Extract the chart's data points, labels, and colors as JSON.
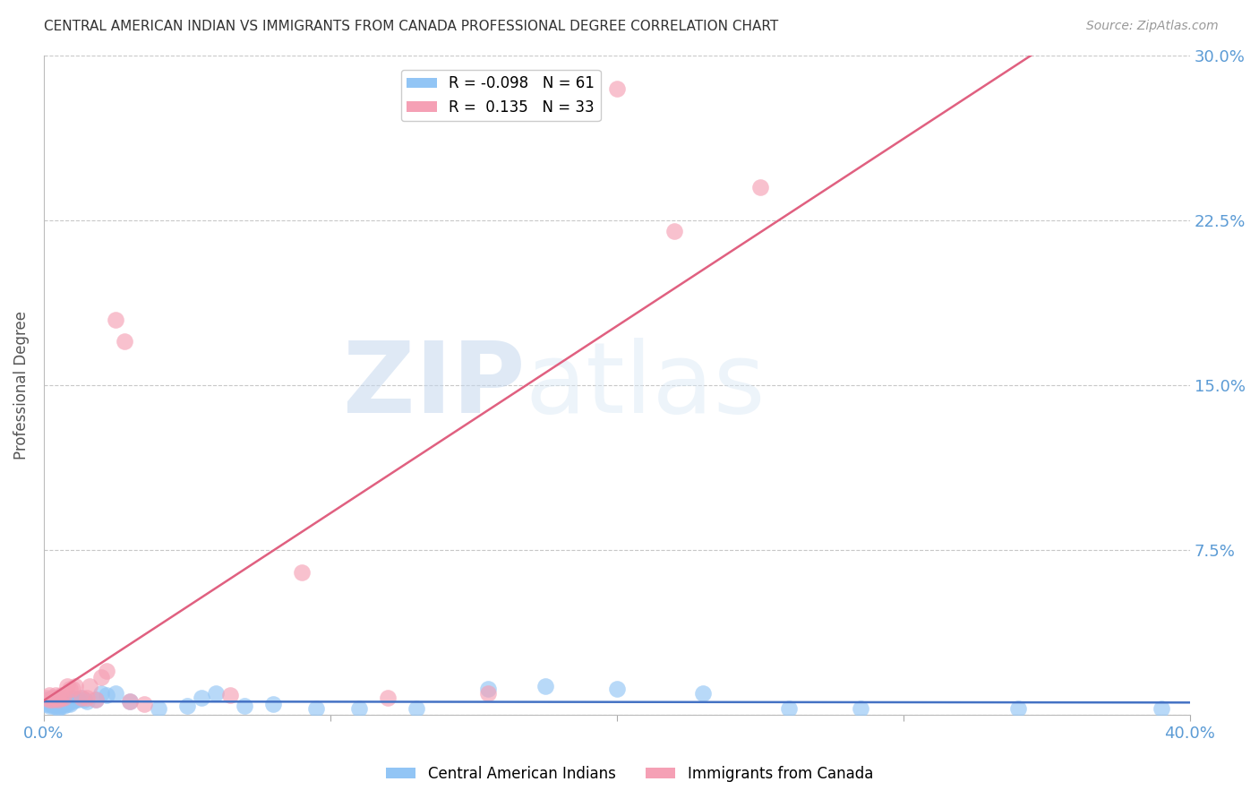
{
  "title": "CENTRAL AMERICAN INDIAN VS IMMIGRANTS FROM CANADA PROFESSIONAL DEGREE CORRELATION CHART",
  "source": "Source: ZipAtlas.com",
  "ylabel": "Professional Degree",
  "xlim": [
    0.0,
    0.4
  ],
  "ylim": [
    0.0,
    0.3
  ],
  "xticks": [
    0.0,
    0.1,
    0.2,
    0.3,
    0.4
  ],
  "yticks": [
    0.0,
    0.075,
    0.15,
    0.225,
    0.3
  ],
  "blue_color": "#92C5F5",
  "pink_color": "#F5A0B5",
  "blue_line_color": "#4472C4",
  "pink_line_color": "#E06080",
  "axis_color": "#5B9BD5",
  "grid_color": "#C8C8C8",
  "watermark_zip": "ZIP",
  "watermark_atlas": "atlas",
  "legend_blue_r": "-0.098",
  "legend_blue_n": "61",
  "legend_pink_r": "0.135",
  "legend_pink_n": "33",
  "legend_label_blue": "Central American Indians",
  "legend_label_pink": "Immigrants from Canada",
  "blue_scatter_x": [
    0.001,
    0.001,
    0.001,
    0.002,
    0.002,
    0.002,
    0.002,
    0.003,
    0.003,
    0.003,
    0.003,
    0.003,
    0.004,
    0.004,
    0.004,
    0.004,
    0.005,
    0.005,
    0.005,
    0.005,
    0.005,
    0.005,
    0.006,
    0.006,
    0.006,
    0.007,
    0.007,
    0.007,
    0.008,
    0.008,
    0.009,
    0.009,
    0.01,
    0.01,
    0.011,
    0.012,
    0.013,
    0.014,
    0.015,
    0.018,
    0.02,
    0.022,
    0.025,
    0.03,
    0.04,
    0.05,
    0.055,
    0.06,
    0.07,
    0.08,
    0.095,
    0.11,
    0.13,
    0.155,
    0.175,
    0.2,
    0.23,
    0.26,
    0.285,
    0.34,
    0.39
  ],
  "blue_scatter_y": [
    0.005,
    0.006,
    0.007,
    0.004,
    0.005,
    0.006,
    0.007,
    0.004,
    0.005,
    0.006,
    0.007,
    0.008,
    0.004,
    0.005,
    0.006,
    0.007,
    0.003,
    0.004,
    0.005,
    0.006,
    0.007,
    0.008,
    0.004,
    0.005,
    0.006,
    0.004,
    0.005,
    0.006,
    0.005,
    0.006,
    0.005,
    0.006,
    0.006,
    0.008,
    0.007,
    0.007,
    0.008,
    0.007,
    0.006,
    0.007,
    0.01,
    0.009,
    0.01,
    0.006,
    0.003,
    0.004,
    0.008,
    0.01,
    0.004,
    0.005,
    0.003,
    0.003,
    0.003,
    0.012,
    0.013,
    0.012,
    0.01,
    0.003,
    0.003,
    0.003,
    0.003
  ],
  "pink_scatter_x": [
    0.001,
    0.002,
    0.002,
    0.003,
    0.003,
    0.004,
    0.004,
    0.005,
    0.005,
    0.006,
    0.006,
    0.007,
    0.008,
    0.009,
    0.01,
    0.011,
    0.013,
    0.015,
    0.016,
    0.018,
    0.02,
    0.022,
    0.025,
    0.028,
    0.03,
    0.035,
    0.065,
    0.09,
    0.12,
    0.155,
    0.2,
    0.22,
    0.25
  ],
  "pink_scatter_y": [
    0.008,
    0.007,
    0.009,
    0.007,
    0.008,
    0.008,
    0.009,
    0.007,
    0.008,
    0.008,
    0.009,
    0.008,
    0.013,
    0.012,
    0.012,
    0.013,
    0.008,
    0.008,
    0.013,
    0.007,
    0.017,
    0.02,
    0.18,
    0.17,
    0.006,
    0.005,
    0.009,
    0.065,
    0.008,
    0.01,
    0.285,
    0.22,
    0.24
  ]
}
